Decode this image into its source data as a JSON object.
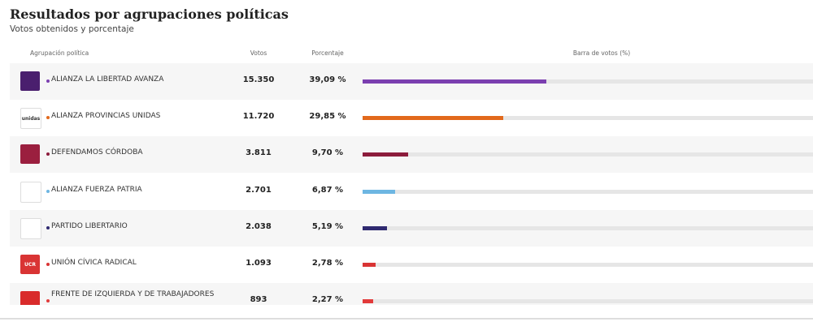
{
  "header": {
    "title": "Resultados por agrupaciones políticas",
    "subtitle": "Votos obtenidos y porcentaje"
  },
  "table": {
    "columns": [
      "Agrupación política",
      "Votos",
      "Porcentaje",
      "Barra de votos (%)"
    ],
    "rows": [
      {
        "name": "ALIANZA LA LIBERTAD AVANZA",
        "votes": "15.350",
        "percent_label": "39,09 %",
        "percent": 39.09,
        "color": "#7b3fb0",
        "logo_bg": "#4a1f6e",
        "logo_fg": "#ffffff"
      },
      {
        "name": "ALIANZA PROVINCIAS UNIDAS",
        "votes": "11.720",
        "percent_label": "29,85 %",
        "percent": 29.85,
        "color": "#e2691c",
        "logo_bg": "#ffffff",
        "logo_fg": "#333333",
        "logo_text": "unidas"
      },
      {
        "name": "DEFENDAMOS CÓRDOBA",
        "votes": "3.811",
        "percent_label": "9,70 %",
        "percent": 9.7,
        "color": "#8c1c3c",
        "logo_bg": "#9b1f3f",
        "logo_fg": "#ffffff"
      },
      {
        "name": "ALIANZA FUERZA PATRIA",
        "votes": "2.701",
        "percent_label": "6,87 %",
        "percent": 6.87,
        "color": "#6db6e2",
        "logo_bg": "#ffffff",
        "logo_fg": "#6db6e2"
      },
      {
        "name": "PARTIDO LIBERTARIO",
        "votes": "2.038",
        "percent_label": "5,19 %",
        "percent": 5.19,
        "color": "#2f2a70",
        "logo_bg": "#ffffff",
        "logo_fg": "#2f2a70"
      },
      {
        "name": "UNIÓN CÍVICA RADICAL",
        "votes": "1.093",
        "percent_label": "2,78 %",
        "percent": 2.78,
        "color": "#d93434",
        "logo_bg": "#d93434",
        "logo_fg": "#ffffff",
        "logo_text": "UCR"
      },
      {
        "name": "FRENTE DE IZQUIERDA Y DE TRABAJADORES",
        "votes": "893",
        "percent_label": "2,27 %",
        "percent": 2.27,
        "color": "#e23b3b",
        "logo_bg": "#d92b2b",
        "logo_fg": "#ffffff"
      }
    ]
  }
}
